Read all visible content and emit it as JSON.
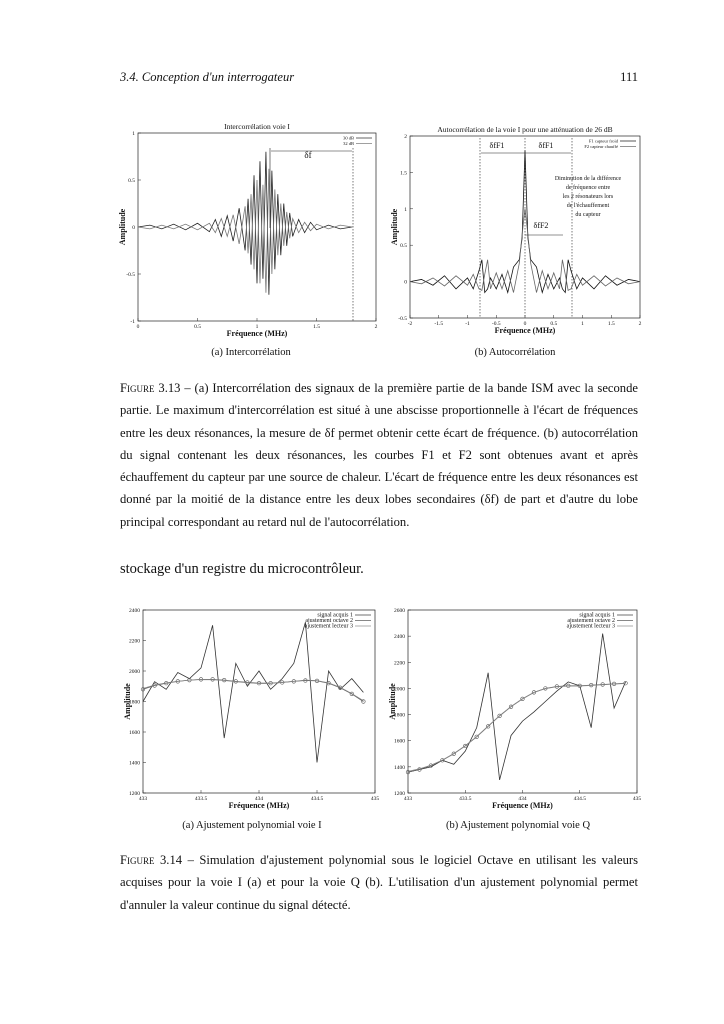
{
  "header": {
    "section": "3.4.  Conception d'un interrogateur",
    "page": "111"
  },
  "chart_data": [
    {
      "type": "line",
      "title": "Intercorrélation voie I",
      "xlabel": "Fréquence (MHz)",
      "ylabel": "Amplitude",
      "x": [
        0,
        0.1,
        0.2,
        0.3,
        0.4,
        0.5,
        0.6,
        0.65,
        0.7,
        0.75,
        0.8,
        0.85,
        0.9,
        0.925,
        0.95,
        0.975,
        1.0,
        1.025,
        1.05,
        1.075,
        1.1,
        1.125,
        1.15,
        1.175,
        1.2,
        1.225,
        1.25,
        1.275,
        1.3,
        1.35,
        1.4,
        1.45,
        1.5,
        1.6,
        1.7,
        1.8
      ],
      "series": [
        {
          "name": "30 dB",
          "color": "#222222",
          "values": [
            0,
            0.02,
            -0.02,
            0.03,
            -0.03,
            0.04,
            -0.05,
            0.08,
            -0.1,
            0.12,
            -0.15,
            0.2,
            -0.25,
            0.3,
            -0.4,
            0.55,
            -0.6,
            0.7,
            -0.55,
            0.8,
            -0.72,
            0.6,
            -0.45,
            0.35,
            -0.3,
            0.25,
            -0.2,
            0.15,
            -0.1,
            0.08,
            -0.06,
            0.05,
            -0.03,
            0.02,
            -0.02,
            0
          ]
        },
        {
          "name": "32 dB",
          "color": "#777777",
          "values": [
            0,
            -0.02,
            0.02,
            -0.02,
            0.03,
            -0.03,
            0.04,
            -0.06,
            0.09,
            -0.1,
            0.13,
            -0.18,
            0.22,
            -0.28,
            0.35,
            -0.45,
            0.5,
            -0.6,
            0.45,
            -0.7,
            0.62,
            -0.5,
            0.4,
            -0.3,
            0.25,
            -0.2,
            0.16,
            -0.12,
            0.09,
            -0.06,
            0.05,
            -0.04,
            0.03,
            -0.02,
            0.02,
            0
          ]
        }
      ],
      "xlim": [
        0,
        2
      ],
      "ylim": [
        -1,
        1
      ],
      "xticks": [
        0,
        0.5,
        1,
        1.5,
        2
      ],
      "yticks": [
        -1,
        -0.5,
        0,
        0.5,
        1
      ],
      "annotations": [
        "δf"
      ]
    },
    {
      "type": "line",
      "title": "Autocorrélation de la voie I pour une atténuation de 26 dB",
      "xlabel": "Fréquence (MHz)",
      "ylabel": "Amplitude",
      "x": [
        -2,
        -1.8,
        -1.6,
        -1.4,
        -1.2,
        -1.0,
        -0.9,
        -0.8,
        -0.75,
        -0.7,
        -0.65,
        -0.6,
        -0.5,
        -0.4,
        -0.3,
        -0.2,
        -0.1,
        -0.05,
        0,
        0.05,
        0.1,
        0.2,
        0.3,
        0.4,
        0.5,
        0.6,
        0.65,
        0.7,
        0.75,
        0.8,
        0.9,
        1.0,
        1.2,
        1.4,
        1.6,
        1.8,
        2
      ],
      "series": [
        {
          "name": "F1 capteur froid",
          "color": "#111111",
          "values": [
            0,
            0.03,
            -0.05,
            0.08,
            -0.1,
            0.05,
            -0.1,
            0.15,
            0.3,
            -0.15,
            -0.1,
            0.05,
            -0.1,
            0.1,
            -0.15,
            0.2,
            0.3,
            0.6,
            1.8,
            0.6,
            0.3,
            0.2,
            -0.15,
            0.1,
            -0.1,
            0.05,
            -0.1,
            -0.15,
            0.3,
            0.15,
            -0.1,
            0.05,
            -0.1,
            0.08,
            -0.05,
            0.03,
            0
          ]
        },
        {
          "name": "F2 capteur chauffé",
          "color": "#666666",
          "values": [
            0,
            -0.03,
            0.05,
            -0.06,
            0.08,
            -0.05,
            0.1,
            -0.1,
            -0.12,
            0.1,
            0.3,
            -0.1,
            0.12,
            -0.1,
            0.15,
            -0.15,
            0.25,
            0.65,
            1.0,
            0.65,
            0.25,
            -0.15,
            0.15,
            -0.1,
            0.12,
            -0.1,
            0.3,
            0.1,
            -0.12,
            -0.1,
            0.1,
            -0.05,
            0.08,
            -0.06,
            0.05,
            -0.03,
            0
          ]
        }
      ],
      "xlim": [
        -2,
        2
      ],
      "ylim": [
        -0.5,
        2
      ],
      "xticks": [
        -2,
        -1.5,
        -1,
        -0.5,
        0,
        0.5,
        1,
        1.5,
        2
      ],
      "yticks": [
        -0.5,
        0,
        0.5,
        1,
        1.5,
        2
      ],
      "annotations": [
        "δfF1",
        "δfF1",
        "δfF2",
        "Diminution de la différence",
        "de fréquence entre",
        "les 2 résonateurs lors",
        "de l'échauffement",
        "du capteur"
      ]
    },
    {
      "type": "line",
      "xlabel": "Fréquence (MHz)",
      "ylabel": "Amplitude",
      "x": [
        433.0,
        433.1,
        433.2,
        433.3,
        433.4,
        433.5,
        433.6,
        433.7,
        433.8,
        433.9,
        434.0,
        434.1,
        434.2,
        434.3,
        434.4,
        434.5,
        434.6,
        434.7,
        434.8,
        434.9
      ],
      "series": [
        {
          "name": "signal acquis 1",
          "color": "#333333",
          "values": [
            1800,
            1930,
            1880,
            1990,
            1950,
            2020,
            2300,
            1560,
            2050,
            1900,
            2000,
            1880,
            1950,
            2050,
            2320,
            1400,
            2000,
            1880,
            1950,
            1860
          ]
        },
        {
          "name": "ajustement octave 2",
          "color": "#555555",
          "marker": "circle",
          "values": [
            1880,
            1905,
            1920,
            1932,
            1940,
            1945,
            1945,
            1940,
            1932,
            1925,
            1920,
            1920,
            1925,
            1932,
            1938,
            1935,
            1920,
            1890,
            1850,
            1800
          ]
        },
        {
          "name": "ajustement lecteur 3",
          "color": "#888888",
          "values": [
            1885,
            1908,
            1922,
            1933,
            1940,
            1944,
            1943,
            1938,
            1930,
            1923,
            1918,
            1919,
            1925,
            1933,
            1940,
            1937,
            1922,
            1893,
            1852,
            1805
          ]
        }
      ],
      "xlim": [
        433,
        435
      ],
      "ylim": [
        1200,
        2400
      ],
      "xticks": [
        433,
        433.5,
        434,
        434.5,
        435
      ],
      "yticks": [
        1200,
        1400,
        1600,
        1800,
        2000,
        2200,
        2400
      ]
    },
    {
      "type": "line",
      "xlabel": "Fréquence (MHz)",
      "ylabel": "Amplitude",
      "x": [
        433.0,
        433.1,
        433.2,
        433.3,
        433.4,
        433.5,
        433.6,
        433.7,
        433.8,
        433.9,
        434.0,
        434.1,
        434.2,
        434.3,
        434.4,
        434.5,
        434.6,
        434.7,
        434.8,
        434.9
      ],
      "series": [
        {
          "name": "signal acquis 1",
          "color": "#333333",
          "values": [
            1360,
            1380,
            1400,
            1450,
            1420,
            1520,
            1700,
            2120,
            1300,
            1640,
            1750,
            1820,
            1900,
            1980,
            2050,
            2020,
            1700,
            2420,
            1850,
            2050
          ]
        },
        {
          "name": "ajustement octave 2",
          "color": "#555555",
          "marker": "circle",
          "values": [
            1360,
            1380,
            1410,
            1450,
            1500,
            1560,
            1630,
            1710,
            1790,
            1860,
            1920,
            1970,
            2000,
            2015,
            2020,
            2020,
            2025,
            2030,
            2035,
            2040
          ]
        },
        {
          "name": "ajustement lecteur 3",
          "color": "#888888",
          "values": [
            1365,
            1385,
            1412,
            1452,
            1502,
            1562,
            1632,
            1712,
            1792,
            1862,
            1921,
            1969,
            1999,
            2013,
            2018,
            2019,
            2023,
            2028,
            2033,
            2038
          ]
        }
      ],
      "xlim": [
        433,
        435
      ],
      "ylim": [
        1200,
        2600
      ],
      "xticks": [
        433,
        433.5,
        434,
        434.5,
        435
      ],
      "yticks": [
        1200,
        1400,
        1600,
        1800,
        2000,
        2200,
        2400,
        2600
      ]
    }
  ],
  "figures": [
    {
      "subcaptions": [
        "(a) Intercorrélation",
        "(b) Autocorrélation"
      ],
      "label": "Figure 3.13",
      "caption": "– (a) Intercorrélation des signaux de la première partie de la bande ISM avec la seconde partie. Le maximum d'intercorrélation est situé à une abscisse proportionnelle à l'écart de fréquences entre les deux résonances, la mesure de δf permet obtenir cette écart de fréquence. (b) autocorrélation du signal contenant les deux résonances, les courbes F1 et F2 sont obtenues avant et après échauffement du capteur par une source de chaleur. L'écart de fréquence entre les deux résonances est donné par la moitié de la distance entre les deux lobes secondaires (δf) de part et d'autre du lobe principal correspondant au retard nul de l'autocorrélation."
    },
    {
      "subcaptions": [
        "(a) Ajustement polynomial voie I",
        "(b) Ajustement polynomial voie Q"
      ],
      "label": "Figure 3.14",
      "caption": "– Simulation d'ajustement polynomial sous le logiciel Octave en utilisant les valeurs acquises pour la voie I (a) et pour la voie Q (b). L'utilisation d'un ajustement polynomial permet d'annuler la valeur continue du signal détecté."
    }
  ],
  "body": "stockage d'un registre du microcontrôleur."
}
